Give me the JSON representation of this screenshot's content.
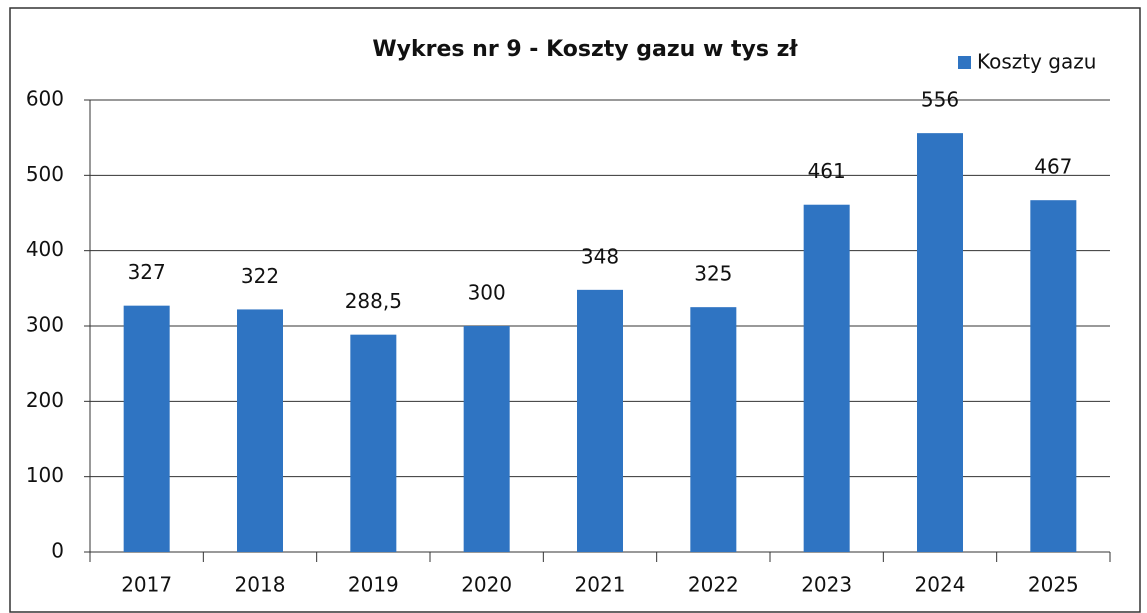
{
  "chart_data": {
    "type": "bar",
    "title": "Wykres nr 9 - Koszty gazu w tys zł",
    "categories": [
      "2017",
      "2018",
      "2019",
      "2020",
      "2021",
      "2022",
      "2023",
      "2024",
      "2025"
    ],
    "series": [
      {
        "name": "Koszty gazu",
        "color": "#2f74c2",
        "values": [
          327,
          322,
          288.5,
          300,
          348,
          325,
          461,
          556,
          467
        ],
        "value_labels": [
          "327",
          "322",
          "288,5",
          "300",
          "348",
          "325",
          "461",
          "556",
          "467"
        ]
      }
    ],
    "ylim": [
      0,
      600
    ],
    "yticks": [
      0,
      100,
      200,
      300,
      400,
      500,
      600
    ],
    "grid": true,
    "legend": "top-right"
  }
}
